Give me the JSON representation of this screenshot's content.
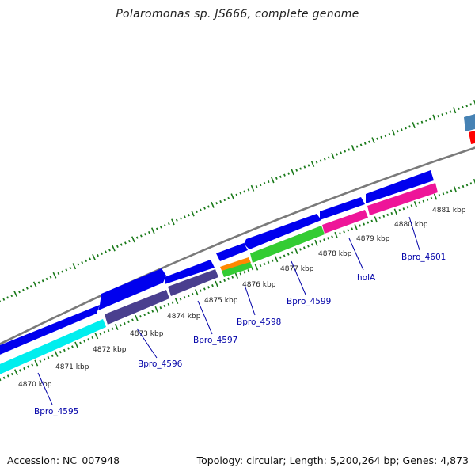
{
  "title": "Polaromonas sp. JS666, complete genome",
  "footer": {
    "accession": "Accession: NC_007948",
    "summary": "Topology: circular; Length: 5,200,264 bp; Genes: 4,873"
  },
  "ticks": [
    "4870 kbp",
    "4871 kbp",
    "4872 kbp",
    "4873 kbp",
    "4874 kbp",
    "4875 kbp",
    "4876 kbp",
    "4877 kbp",
    "4878 kbp",
    "4879 kbp",
    "4880 kbp",
    "4881 kbp"
  ],
  "gene_labels": [
    "Bpro_4595",
    "Bpro_4596",
    "Bpro_4597",
    "Bpro_4598",
    "Bpro_4599",
    "holA",
    "Bpro_4601"
  ],
  "colors": {
    "cds": "#0000ee",
    "backbone": "#888888",
    "tick": "#1a7a1a",
    "gene_label": "#0000a8",
    "cyan": "#00eeee",
    "slate": "#4a3f8f",
    "orange": "#ff8800",
    "green": "#33cc33",
    "pink": "#ee1599",
    "steelblue": "#4682b4",
    "red": "#ff0000"
  }
}
